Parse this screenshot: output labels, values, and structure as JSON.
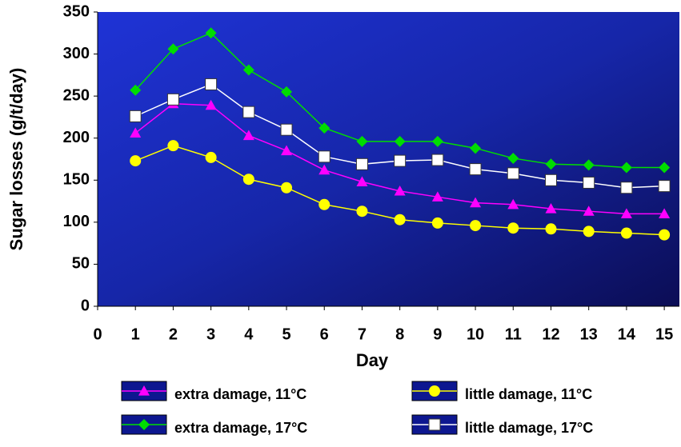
{
  "chart_data": {
    "type": "line",
    "x_label": "Day",
    "y_label": "Sugar losses (g/t/day)",
    "x": [
      1,
      2,
      3,
      4,
      5,
      6,
      7,
      8,
      9,
      10,
      11,
      12,
      13,
      14,
      15
    ],
    "xlim": [
      0,
      15.4
    ],
    "xticks": [
      0,
      1,
      2,
      3,
      4,
      5,
      6,
      7,
      8,
      9,
      10,
      11,
      12,
      13,
      14,
      15
    ],
    "ylim": [
      0,
      350
    ],
    "yticks": [
      0,
      50,
      100,
      150,
      200,
      250,
      300,
      350
    ],
    "series": [
      {
        "name": "extra damage, 11°C",
        "color": "#ff00ff",
        "marker": "triangle",
        "values": [
          206,
          241,
          239,
          203,
          185,
          162,
          148,
          137,
          130,
          123,
          121,
          116,
          113,
          110,
          110
        ]
      },
      {
        "name": "extra damage, 17°C",
        "color": "#00dd00",
        "marker": "diamond",
        "values": [
          257,
          306,
          325,
          281,
          255,
          212,
          196,
          196,
          196,
          188,
          176,
          169,
          168,
          165,
          165
        ]
      },
      {
        "name": "little damage, 11°C",
        "color": "#ffff00",
        "marker": "circle",
        "values": [
          173,
          191,
          177,
          151,
          141,
          121,
          113,
          103,
          99,
          96,
          93,
          92,
          89,
          87,
          85
        ]
      },
      {
        "name": "little damage, 17°C",
        "color": "#ffffff",
        "marker": "square",
        "values": [
          226,
          246,
          264,
          231,
          210,
          178,
          169,
          173,
          174,
          163,
          158,
          150,
          147,
          141,
          143
        ]
      }
    ]
  }
}
